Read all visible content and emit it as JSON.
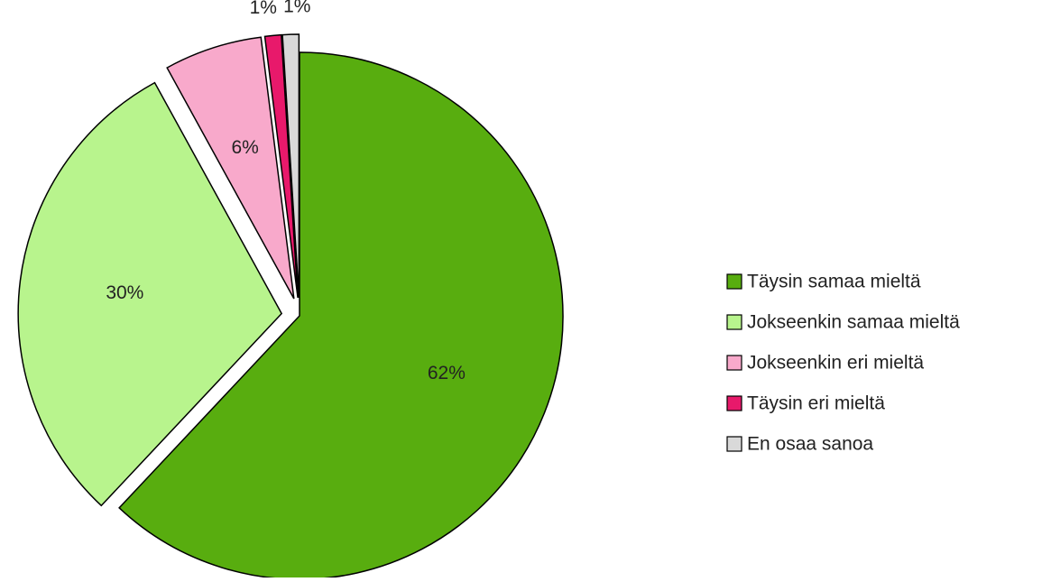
{
  "chart_data": {
    "type": "pie",
    "categories": [
      "Täysin samaa mieltä",
      "Jokseenkin samaa mieltä",
      "Jokseenkin eri mieltä",
      "Täysin eri mieltä",
      "En osaa sanoa"
    ],
    "values": [
      62,
      30,
      6,
      1,
      1
    ],
    "value_labels": [
      "62%",
      "30%",
      "6%",
      "1%",
      "1%"
    ],
    "colors": [
      "#58ad0f",
      "#b8f48d",
      "#f8a9cb",
      "#e8196b",
      "#d9d9d9"
    ],
    "legend": "right"
  }
}
